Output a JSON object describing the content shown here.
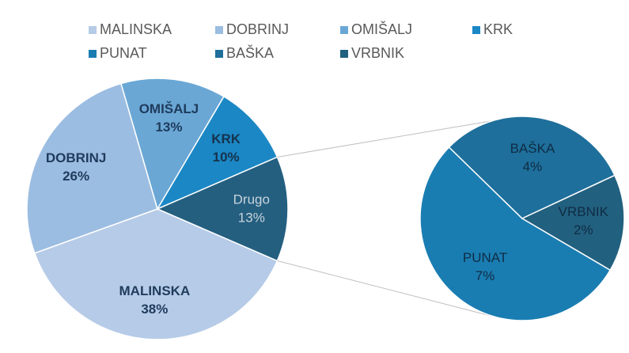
{
  "chart_data": {
    "type": "pie-of-pie",
    "categories": [
      "MALINSKA",
      "DOBRINJ",
      "OMIŠALJ",
      "KRK",
      "PUNAT",
      "BAŠKA",
      "VRBNIK"
    ],
    "values": [
      38,
      26,
      13,
      10,
      7,
      4,
      2
    ],
    "value_labels": [
      "38%",
      "26%",
      "13%",
      "10%",
      "7%",
      "4%",
      "2%"
    ],
    "colors": [
      "#b6cbe7",
      "#9cbde2",
      "#6aa7d5",
      "#1b88c5",
      "#1a7db2",
      "#1e6f9b",
      "#22607f"
    ],
    "other": {
      "name": "Drugo",
      "value": 13,
      "value_label": "13%",
      "color": "#245f80"
    },
    "secondary_count": 3
  }
}
